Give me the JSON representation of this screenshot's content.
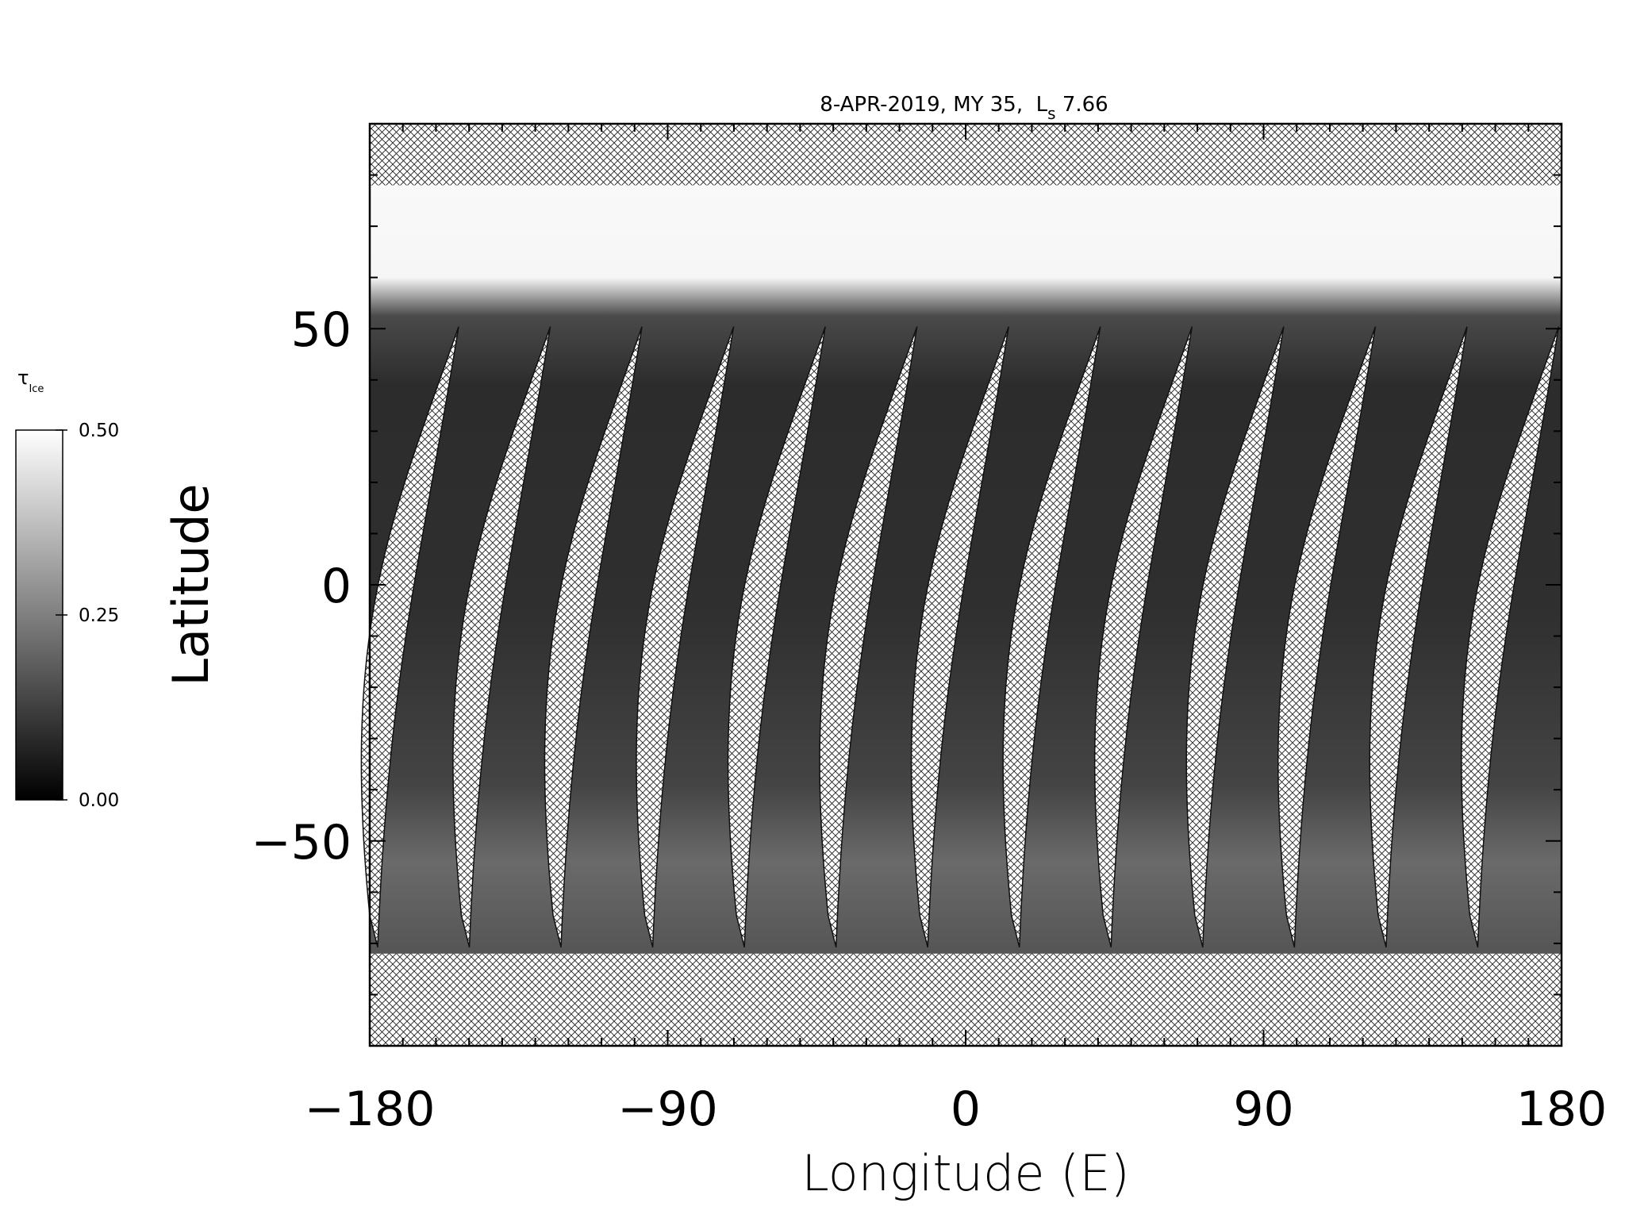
{
  "chart_data": {
    "type": "map",
    "title": {
      "text": "8-APR-2019, MY 35,  L",
      "subscript": "s",
      "value": " 7.66"
    },
    "x_label": "Longitude (E)",
    "y_label": "Latitude",
    "xlim": [
      -180,
      180
    ],
    "ylim": [
      -90,
      90
    ],
    "xticks": [
      {
        "value": -180,
        "label": "−180"
      },
      {
        "value": -90,
        "label": "−90"
      },
      0,
      90,
      180
    ],
    "yticks": [
      {
        "value": -50,
        "label": "−50"
      },
      0,
      50
    ],
    "xminorticks": [
      -170,
      -160,
      -150,
      -140,
      -130,
      -120,
      -110,
      -100,
      -80,
      -70,
      -60,
      -50,
      -40,
      -30,
      -20,
      -10,
      10,
      20,
      30,
      40,
      50,
      60,
      70,
      80,
      100,
      110,
      120,
      130,
      140,
      150,
      160,
      170
    ],
    "yminorticks": [
      -80,
      -70,
      -60,
      -40,
      -30,
      -20,
      -10,
      10,
      20,
      30,
      40,
      60,
      70,
      80
    ],
    "colorbar": {
      "symbol": "τ",
      "subscript": "Ice",
      "lim": [
        0,
        0.5
      ],
      "ticks": [
        {
          "value": 0,
          "label": "0.00"
        },
        {
          "value": 0.25,
          "label": "0.25"
        },
        {
          "value": 0.5,
          "label": "0.50"
        }
      ]
    }
  }
}
